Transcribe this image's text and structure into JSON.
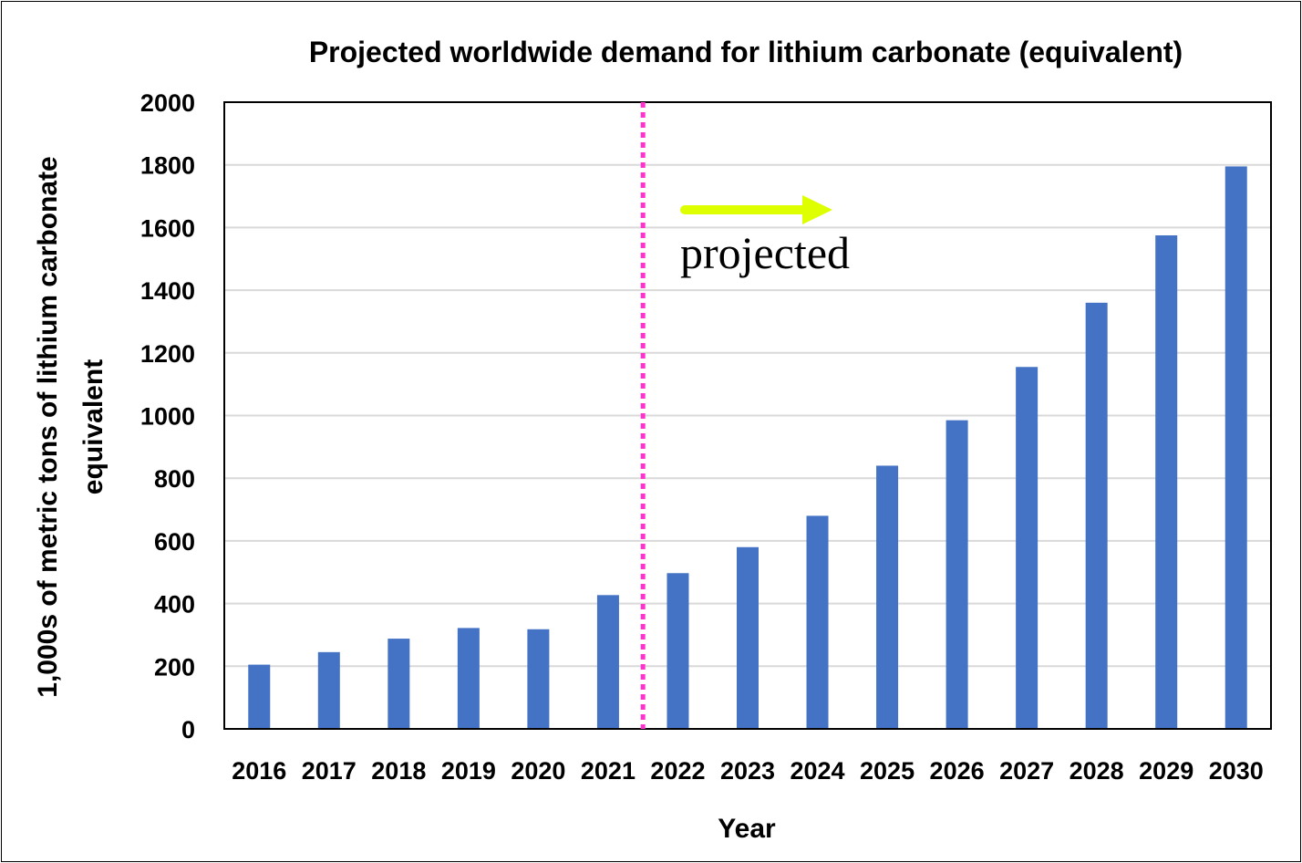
{
  "chart_data": {
    "type": "bar",
    "title": "Projected worldwide demand for lithium carbonate (equivalent)",
    "xlabel": "Year",
    "ylabel_lines": [
      "1,000s of metric tons of lithium carbonate",
      "equivalent"
    ],
    "categories": [
      "2016",
      "2017",
      "2018",
      "2019",
      "2020",
      "2021",
      "2022",
      "2023",
      "2024",
      "2025",
      "2026",
      "2027",
      "2028",
      "2029",
      "2030"
    ],
    "values": [
      205,
      245,
      288,
      322,
      318,
      427,
      497,
      580,
      680,
      840,
      985,
      1155,
      1360,
      1575,
      1795
    ],
    "ylim": [
      0,
      2000
    ],
    "yticks": [
      "0",
      "200",
      "400",
      "600",
      "800",
      "1000",
      "1200",
      "1400",
      "1600",
      "1800",
      "2000"
    ],
    "grid": true,
    "bar_color": "#4472C4",
    "projection_divider": {
      "between": [
        "2021",
        "2022"
      ],
      "color": "#FF33CC",
      "style": "dotted"
    },
    "annotation": {
      "text": "projected",
      "arrow_color": "#DDFF00",
      "arrow_direction": "right"
    }
  }
}
